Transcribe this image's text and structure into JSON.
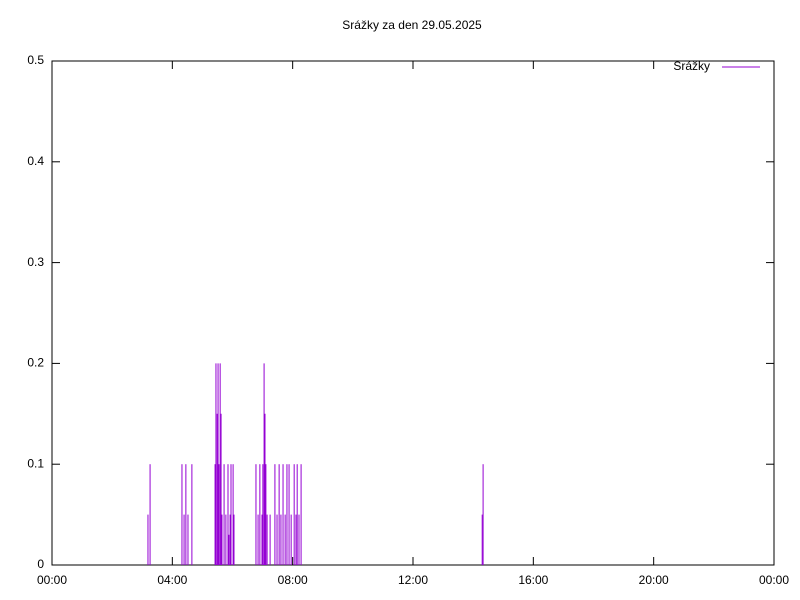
{
  "chart_data": {
    "type": "impulse",
    "title": "Srážky za den 29.05.2025",
    "series": [
      {
        "name": "Srážky",
        "color": "#9400d3",
        "x": [
          3.19,
          3.26,
          4.32,
          4.39,
          4.45,
          4.52,
          4.65,
          5.42,
          5.45,
          5.49,
          5.52,
          5.55,
          5.59,
          5.62,
          5.65,
          5.72,
          5.78,
          5.85,
          5.88,
          5.92,
          5.95,
          6.02,
          6.05,
          6.78,
          6.85,
          6.91,
          6.98,
          7.01,
          7.05,
          7.08,
          7.11,
          7.15,
          7.25,
          7.41,
          7.48,
          7.55,
          7.61,
          7.68,
          7.75,
          7.81,
          7.88,
          7.95,
          8.05,
          8.11,
          8.15,
          8.21,
          8.28,
          14.3,
          14.33
        ],
        "values": [
          0.05,
          0.1,
          0.1,
          0.05,
          0.1,
          0.05,
          0.1,
          0.1,
          0.2,
          0.15,
          0.2,
          0.1,
          0.2,
          0.15,
          0.05,
          0.1,
          0.05,
          0.1,
          0.03,
          0.05,
          0.1,
          0.1,
          0.05,
          0.1,
          0.05,
          0.1,
          0.05,
          0.1,
          0.2,
          0.15,
          0.1,
          0.05,
          0.05,
          0.1,
          0.05,
          0.1,
          0.05,
          0.1,
          0.05,
          0.1,
          0.1,
          0.05,
          0.1,
          0.05,
          0.1,
          0.05,
          0.1,
          0.05,
          0.1
        ]
      }
    ],
    "xlim": [
      0,
      24
    ],
    "xticks": [
      {
        "value": 0,
        "label": "00:00"
      },
      {
        "value": 4,
        "label": "04:00"
      },
      {
        "value": 8,
        "label": "08:00"
      },
      {
        "value": 12,
        "label": "12:00"
      },
      {
        "value": 16,
        "label": "16:00"
      },
      {
        "value": 20,
        "label": "20:00"
      },
      {
        "value": 24,
        "label": "00:00"
      }
    ],
    "ylim": [
      0,
      0.5
    ],
    "yticks": [
      0,
      0.1,
      0.2,
      0.3,
      0.4,
      0.5
    ],
    "legend": "top-right"
  }
}
